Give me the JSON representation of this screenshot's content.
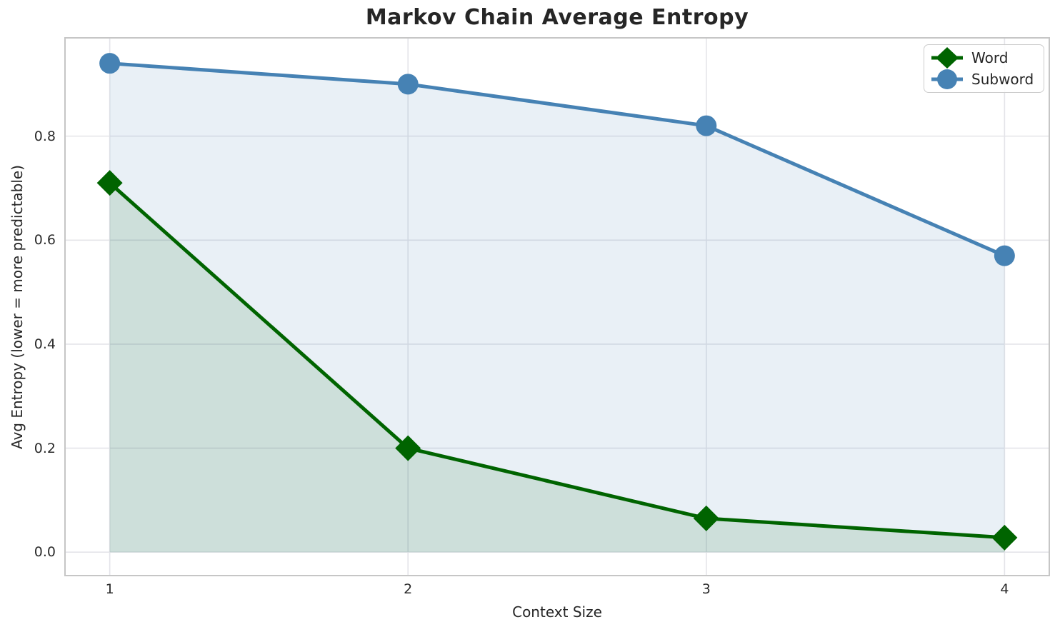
{
  "chart_data": {
    "type": "line",
    "title": "Markov Chain Average Entropy",
    "xlabel": "Context Size",
    "ylabel": "Avg Entropy (lower = more predictable)",
    "x": [
      1,
      2,
      3,
      4
    ],
    "x_tick_labels": [
      "1",
      "2",
      "3",
      "4"
    ],
    "y_tick_labels": [
      "0.0",
      "0.2",
      "0.4",
      "0.6",
      "0.8"
    ],
    "y_tick_values": [
      0.0,
      0.2,
      0.4,
      0.6,
      0.8
    ],
    "xlim": [
      0.85,
      4.15
    ],
    "ylim": [
      -0.045,
      0.989
    ],
    "grid": true,
    "legend_position": "upper right",
    "series": [
      {
        "name": "Word",
        "marker": "diamond",
        "color": "#006400",
        "values": [
          0.71,
          0.2,
          0.065,
          0.028
        ],
        "fill_to_zero": true,
        "fill_alpha": 0.12
      },
      {
        "name": "Subword",
        "marker": "circle",
        "color": "#4682b4",
        "values": [
          0.94,
          0.9,
          0.82,
          0.57
        ],
        "fill_to_zero": true,
        "fill_alpha": 0.12
      }
    ]
  },
  "style": {
    "background": "#ffffff",
    "grid_color": "#e4e4e9",
    "spine_color": "#c6c6c6",
    "title_color": "#262626",
    "text_color": "#2b2b2b"
  }
}
